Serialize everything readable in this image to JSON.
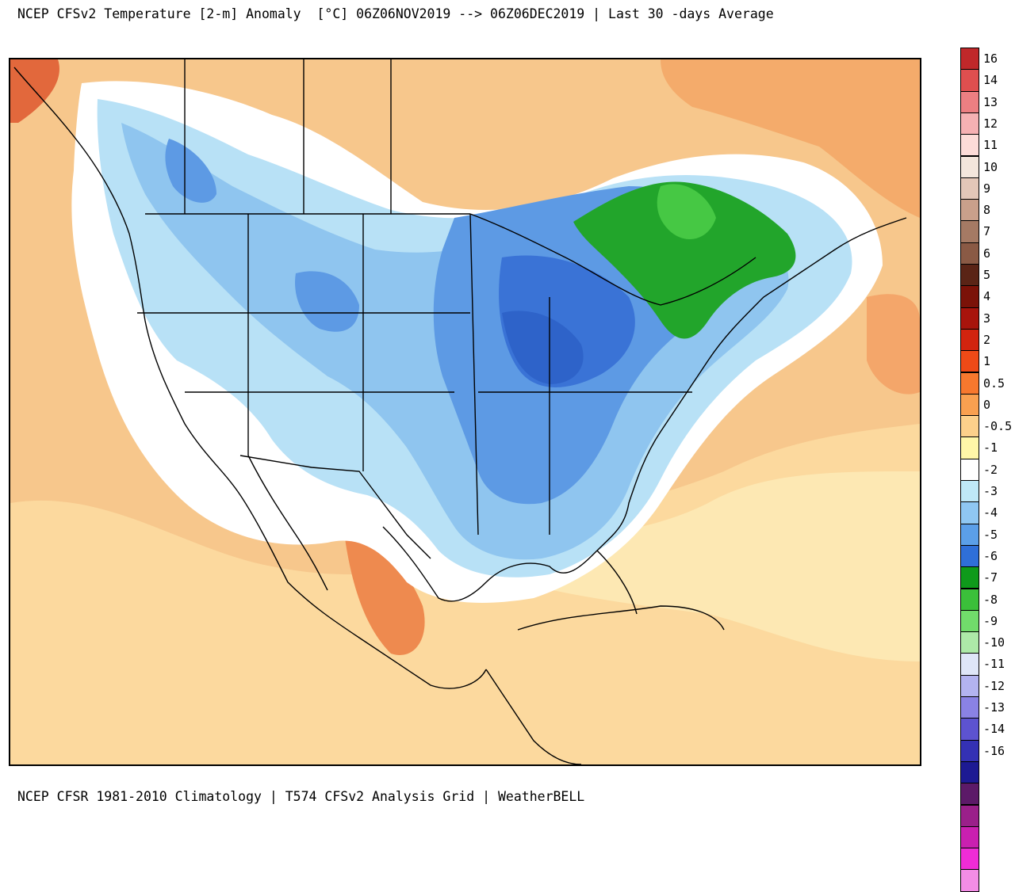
{
  "header": {
    "title": "NCEP CFSv2 Temperature [2-m] Anomaly  [°C] 06Z06NOV2019 --> 06Z06DEC2019 | Last 30 -days Average"
  },
  "footer": {
    "credit": "NCEP CFSR 1981-2010 Climatology | T574 CFSv2 Analysis Grid | WeatherBELL"
  },
  "map": {
    "region": "North America",
    "variable": "2-m temperature anomaly",
    "units": "°C"
  },
  "colorbar": {
    "labels": [
      "16",
      "14",
      "13",
      "12",
      "11",
      "10",
      "9",
      "8",
      "7",
      "6",
      "5",
      "4",
      "3",
      "2",
      "1",
      "0.5",
      "0",
      "-0.5",
      "-1",
      "-2",
      "-3",
      "-4",
      "-5",
      "-6",
      "-7",
      "-8",
      "-9",
      "-10",
      "-11",
      "-12",
      "-13",
      "-14",
      "-16"
    ],
    "colors": [
      "#c0282a",
      "#df4f4f",
      "#ec7f82",
      "#f5b1b3",
      "#fcdcd8",
      "#f3e6dc",
      "#e3c7b8",
      "#c9a08b",
      "#a57a64",
      "#8a5a45",
      "#5a2416",
      "#7b1208",
      "#a8140c",
      "#d2240f",
      "#ee4a17",
      "#f7782e",
      "#f9a050",
      "#fcd08b",
      "#fff6a8",
      "#ffffff",
      "#bfe8f7",
      "#8fc7f2",
      "#5b9fe8",
      "#2f6fd8",
      "#0f9a1b",
      "#3bc03a",
      "#71dc6b",
      "#ade9a8",
      "#dfe6f8",
      "#b3b3f0",
      "#8a82e4",
      "#5d53d0",
      "#3431b4",
      "#1d1a93",
      "#5c1a68",
      "#9a208a",
      "#c920b0",
      "#ef2cd6",
      "#f38de6"
    ]
  }
}
